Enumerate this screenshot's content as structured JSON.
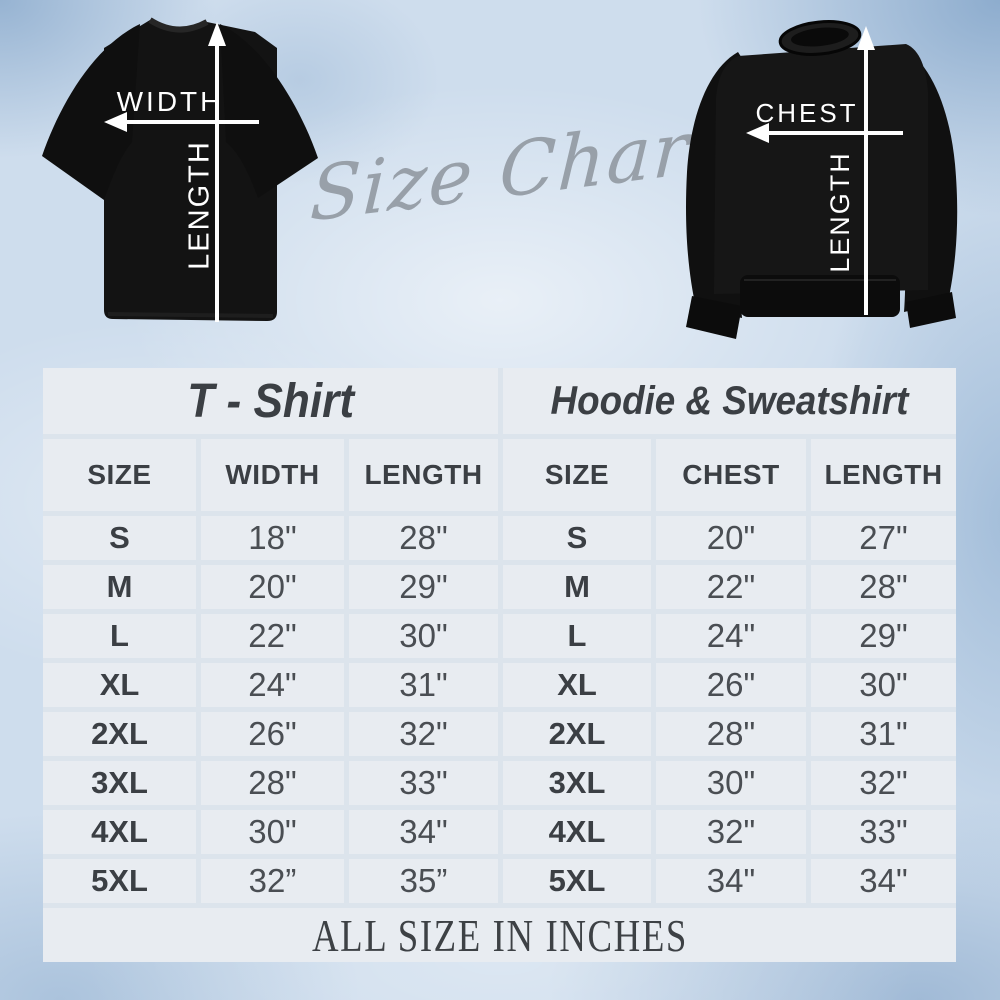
{
  "script_title": "Size Chart",
  "diagrams": {
    "tshirt": {
      "h_label": "WIDTH",
      "v_label": "LENGTH"
    },
    "sweatshirt": {
      "h_label": "CHEST",
      "v_label": "LENGTH"
    }
  },
  "chart_data": {
    "type": "table",
    "title": "Size Chart",
    "units": "inches",
    "tables": [
      {
        "title": "T - Shirt",
        "columns": [
          "SIZE",
          "WIDTH",
          "LENGTH"
        ],
        "rows": [
          [
            "S",
            "18\"",
            "28\""
          ],
          [
            "M",
            "20\"",
            "29\""
          ],
          [
            "L",
            "22\"",
            "30\""
          ],
          [
            "XL",
            "24\"",
            "31\""
          ],
          [
            "2XL",
            "26\"",
            "32\""
          ],
          [
            "3XL",
            "28\"",
            "33\""
          ],
          [
            "4XL",
            "30\"",
            "34\""
          ],
          [
            "5XL",
            "32”",
            "35”"
          ]
        ]
      },
      {
        "title": "Hoodie & Sweatshirt",
        "columns": [
          "SIZE",
          "CHEST",
          "LENGTH"
        ],
        "rows": [
          [
            "S",
            "20\"",
            "27\""
          ],
          [
            "M",
            "22\"",
            "28\""
          ],
          [
            "L",
            "24\"",
            "29\""
          ],
          [
            "XL",
            "26\"",
            "30\""
          ],
          [
            "2XL",
            "28\"",
            "31\""
          ],
          [
            "3XL",
            "30\"",
            "32\""
          ],
          [
            "4XL",
            "32\"",
            "33\""
          ],
          [
            "5XL",
            "34\"",
            "34\""
          ]
        ]
      }
    ],
    "footer": "ALL SIZE IN INCHES"
  },
  "colors": {
    "background": "#cedded",
    "cell": "#e8ecf1",
    "table_text": "#3b3f44",
    "value_text": "#4a4e53",
    "script_text": "#98a0a9",
    "garment": "#121212",
    "arrow": "#ffffff"
  }
}
